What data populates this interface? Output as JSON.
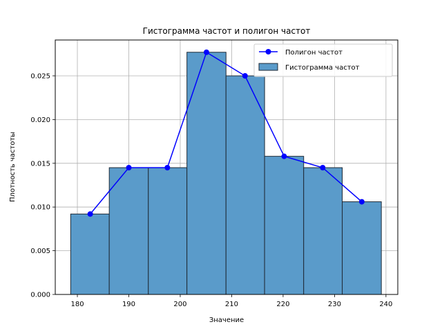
{
  "chart_data": {
    "type": "bar",
    "title": "Гистограмма частот и полигон частот",
    "xlabel": "Значение",
    "ylabel": "Плотность частоты",
    "xlim": [
      175.7,
      242.3
    ],
    "ylim": [
      0,
      0.0291
    ],
    "grid": true,
    "legend_position": "top-right",
    "x_ticks": [
      180,
      190,
      200,
      210,
      220,
      230,
      240
    ],
    "y_ticks": [
      0.0,
      0.005,
      0.01,
      0.015,
      0.02,
      0.025
    ],
    "y_tick_labels": [
      "0.000",
      "0.005",
      "0.010",
      "0.015",
      "0.020",
      "0.025"
    ],
    "x_tick_labels": [
      "180",
      "190",
      "200",
      "210",
      "220",
      "230",
      "240"
    ],
    "histogram": {
      "name": "Гистограмма частот",
      "color": "#5a9bca",
      "edge_color": "#1f2a36",
      "bin_edges": [
        178.7,
        186.2,
        193.8,
        201.3,
        208.9,
        216.4,
        224.0,
        231.5,
        239.1
      ],
      "values": [
        0.0092,
        0.0145,
        0.0145,
        0.0277,
        0.025,
        0.0158,
        0.0145,
        0.0106
      ]
    },
    "polygon": {
      "name": "Полигон частот",
      "color": "#0000ff",
      "x": [
        182.5,
        190.0,
        197.5,
        205.1,
        212.6,
        220.2,
        227.7,
        235.3
      ],
      "y": [
        0.0092,
        0.0145,
        0.0145,
        0.0277,
        0.025,
        0.0158,
        0.0145,
        0.0106
      ]
    }
  }
}
